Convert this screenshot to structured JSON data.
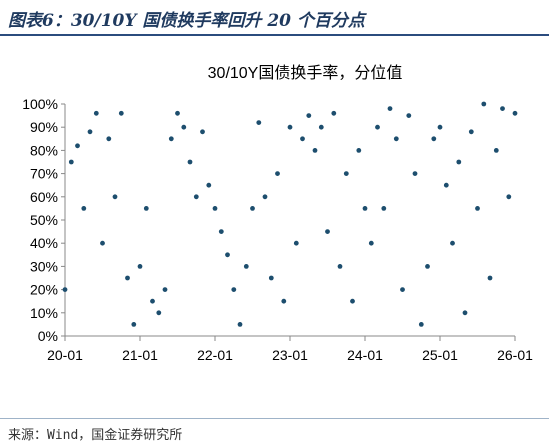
{
  "figure": {
    "title": "图表6：30/10Y 国债换手率回升 20 个百分点",
    "source": "来源：Wind，国金证券研究所"
  },
  "colors": {
    "series": "#1d4e6e",
    "axis": "#888888",
    "title_text": "#1f3a5f"
  },
  "chart_data": {
    "type": "scatter",
    "title": "30/10Y国债换手率，分位值",
    "xlabel": "",
    "ylabel": "",
    "x_tick_labels": [
      "20-01",
      "21-01",
      "22-01",
      "23-01",
      "24-01",
      "25-01",
      "26-01"
    ],
    "x_range": [
      "2020-01",
      "2026-01"
    ],
    "ylim": [
      0,
      100
    ],
    "y_tick_labels": [
      "0%",
      "10%",
      "20%",
      "30%",
      "40%",
      "50%",
      "60%",
      "70%",
      "80%",
      "90%",
      "100%"
    ],
    "grid": false,
    "legend": "none",
    "series": [
      {
        "marker": "dot",
        "x": [
          "2020-01",
          "2020-02",
          "2020-03",
          "2020-04",
          "2020-05",
          "2020-06",
          "2020-07",
          "2020-08",
          "2020-09",
          "2020-10",
          "2020-11",
          "2020-12",
          "2021-01",
          "2021-02",
          "2021-03",
          "2021-04",
          "2021-05",
          "2021-06",
          "2021-07",
          "2021-08",
          "2021-09",
          "2021-10",
          "2021-11",
          "2021-12",
          "2022-01",
          "2022-02",
          "2022-03",
          "2022-04",
          "2022-05",
          "2022-06",
          "2022-07",
          "2022-08",
          "2022-09",
          "2022-10",
          "2022-11",
          "2022-12",
          "2023-01",
          "2023-02",
          "2023-03",
          "2023-04",
          "2023-05",
          "2023-06",
          "2023-07",
          "2023-08",
          "2023-09",
          "2023-10",
          "2023-11",
          "2023-12",
          "2024-01",
          "2024-02",
          "2024-03",
          "2024-04",
          "2024-05",
          "2024-06",
          "2024-07",
          "2024-08",
          "2024-09",
          "2024-10",
          "2024-11",
          "2024-12",
          "2025-01",
          "2025-02",
          "2025-03",
          "2025-04",
          "2025-05",
          "2025-06",
          "2025-07",
          "2025-08",
          "2025-09",
          "2025-10",
          "2025-11",
          "2025-12",
          "2026-01"
        ],
        "y": [
          20,
          75,
          82,
          55,
          88,
          96,
          40,
          85,
          60,
          96,
          25,
          5,
          30,
          55,
          15,
          10,
          20,
          85,
          96,
          90,
          75,
          60,
          88,
          65,
          55,
          45,
          35,
          20,
          5,
          30,
          55,
          92,
          60,
          25,
          70,
          15,
          90,
          40,
          85,
          95,
          80,
          90,
          45,
          96,
          30,
          70,
          15,
          80,
          55,
          40,
          90,
          55,
          98,
          85,
          20,
          95,
          70,
          5,
          30,
          85,
          90,
          65,
          40,
          75,
          10,
          88,
          55,
          100,
          25,
          80,
          98,
          60,
          96
        ]
      }
    ]
  }
}
